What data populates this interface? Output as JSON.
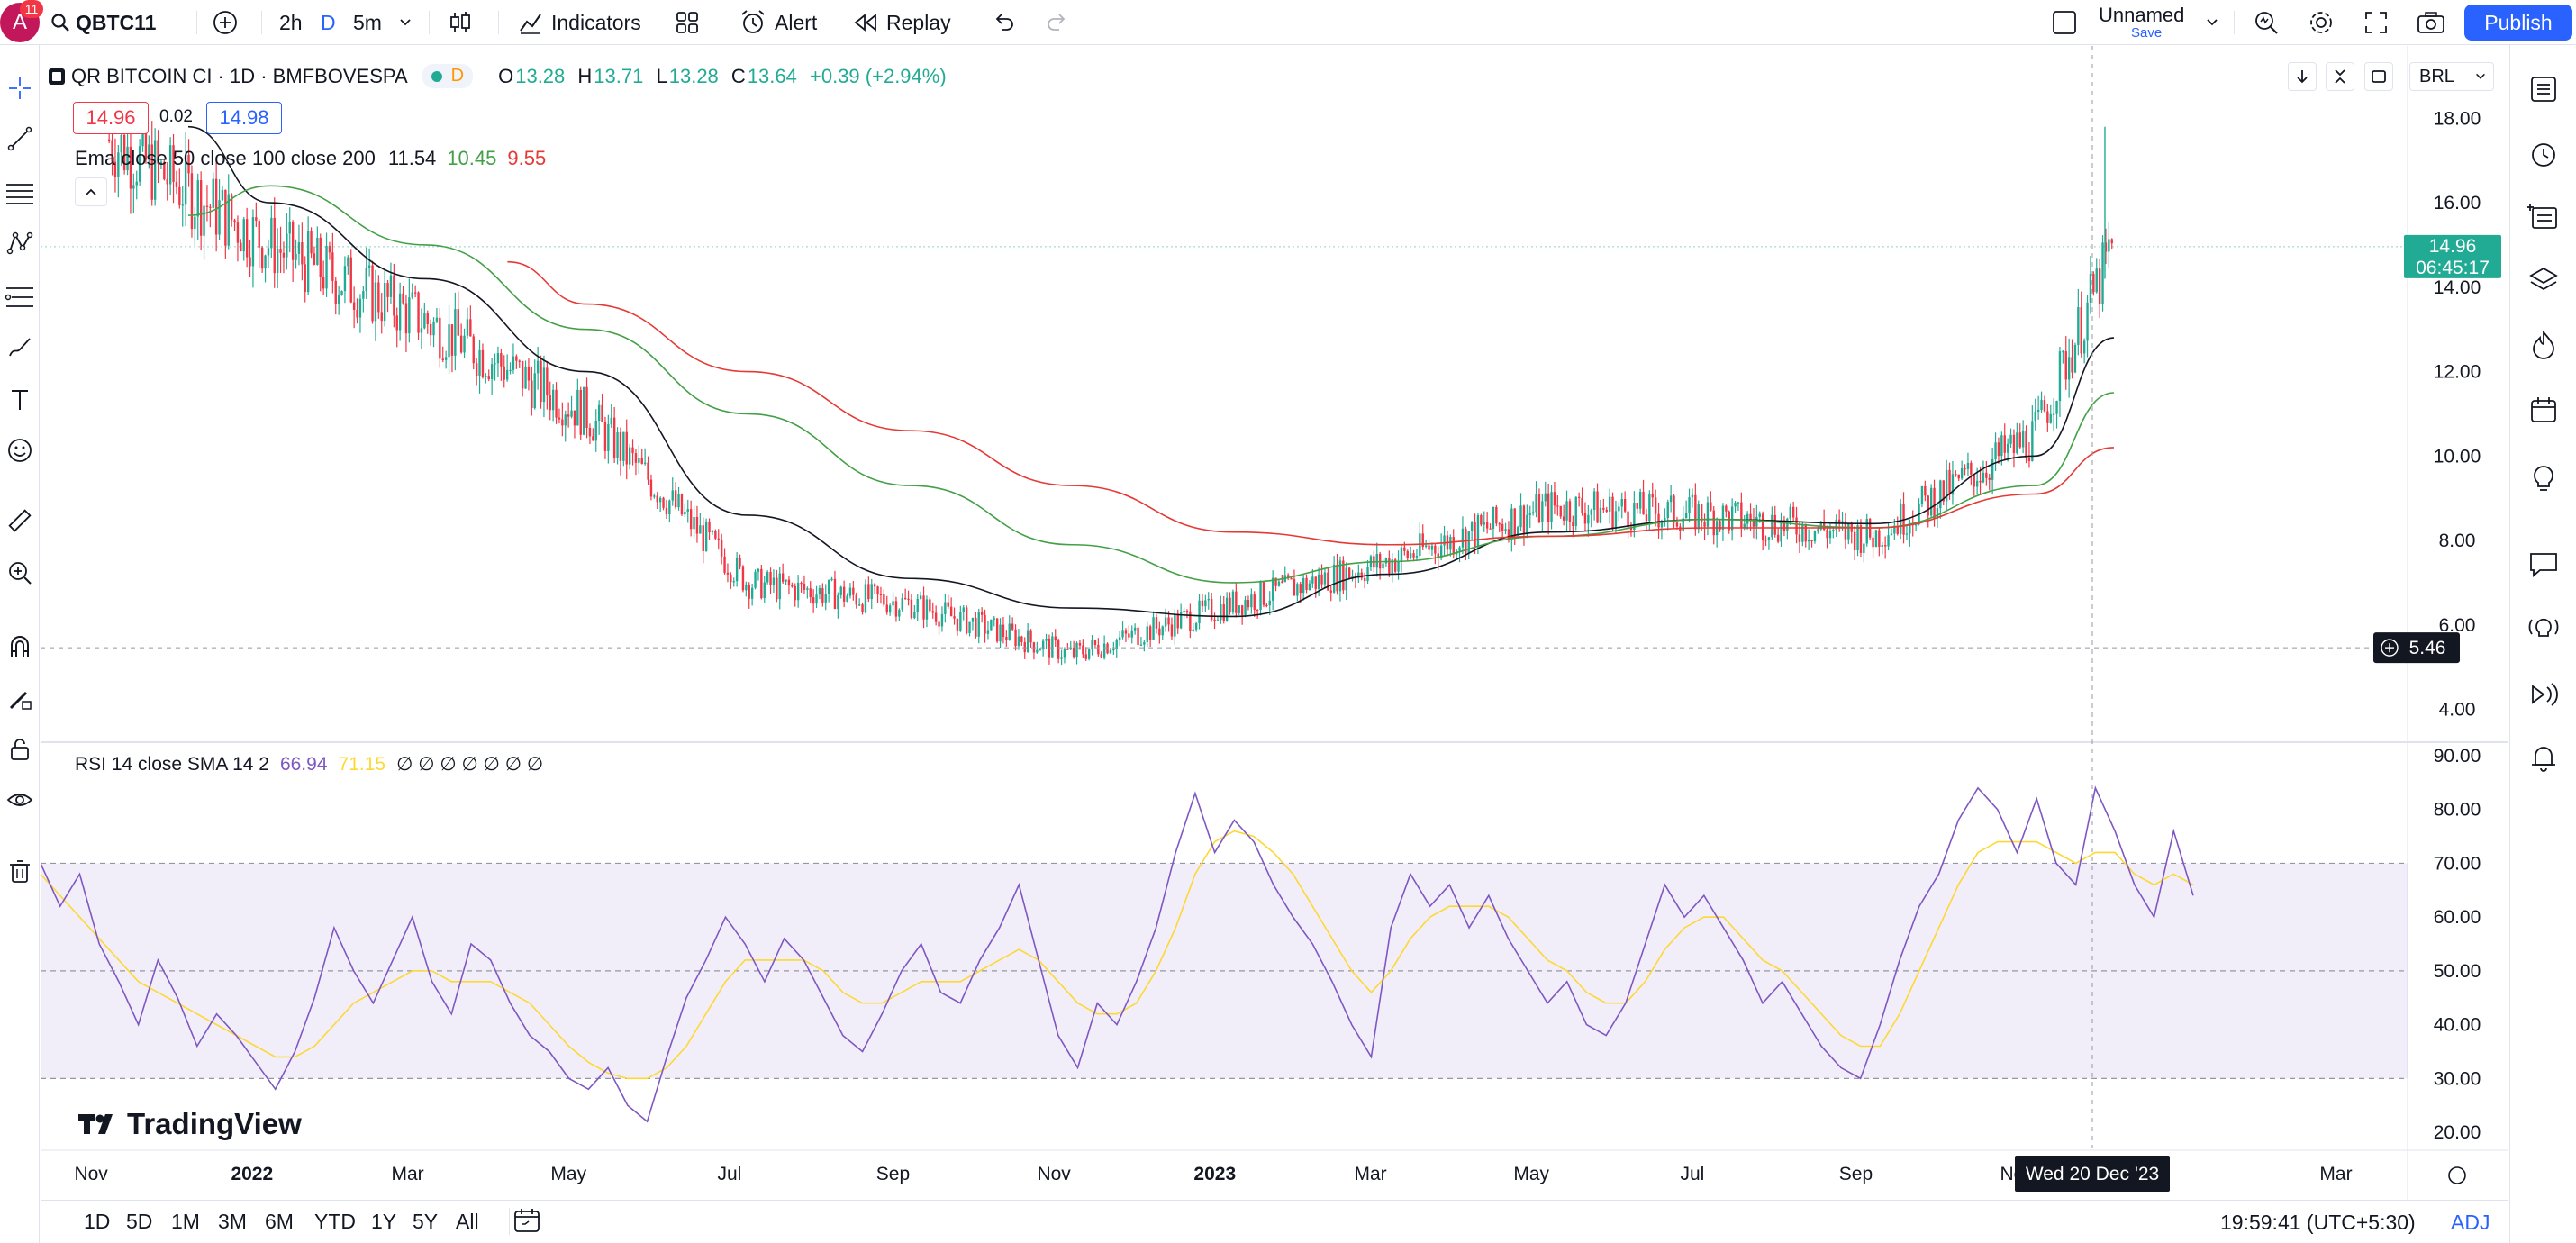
{
  "header": {
    "avatar_letter": "A",
    "notifications": "11",
    "symbol": "QBTC11",
    "intervals": [
      "2h",
      "D",
      "5m"
    ],
    "indicators_label": "Indicators",
    "alert_label": "Alert",
    "replay_label": "Replay",
    "layout_name": "Unnamed",
    "save_label": "Save",
    "publish_label": "Publish"
  },
  "legend": {
    "title": "QR BITCOIN CI · 1D · BMFBOVESPA",
    "interval_badge": "D",
    "o_label": "O",
    "o": "13.28",
    "h_label": "H",
    "h": "13.71",
    "l_label": "L",
    "l": "13.28",
    "c_label": "C",
    "c": "13.64",
    "change": "+0.39 (+2.94%)",
    "bid": "14.96",
    "spread": "0.02",
    "ask": "14.98",
    "ema_label": "Ema close 50 close 100 close 200",
    "ema_vals": [
      "11.54",
      "10.45",
      "9.55"
    ],
    "rsi_label": "RSI 14 close SMA 14 2",
    "rsi_vals": [
      "66.94",
      "71.15"
    ],
    "rsi_na": "∅ ∅ ∅ ∅ ∅ ∅ ∅"
  },
  "price_axis": {
    "currency": "BRL",
    "ticks": [
      "18.00",
      "16.00",
      "14.00",
      "12.00",
      "10.00",
      "8.00",
      "6.00",
      "4.00"
    ],
    "last_price": "14.96",
    "countdown": "06:45:17",
    "crosshair_price": "5.46"
  },
  "rsi_axis": {
    "ticks": [
      "90.00",
      "80.00",
      "70.00",
      "60.00",
      "50.00",
      "40.00",
      "30.00",
      "20.00"
    ]
  },
  "time_axis": {
    "labels": [
      "Nov",
      "2022",
      "Mar",
      "May",
      "Jul",
      "Sep",
      "Nov",
      "2023",
      "Mar",
      "May",
      "Jul",
      "Sep",
      "Nov",
      "Mar"
    ],
    "crosshair_date": "Wed 20 Dec '23"
  },
  "branding": {
    "logo_text": "TradingView"
  },
  "bottom": {
    "ranges": [
      "1D",
      "5D",
      "1M",
      "3M",
      "6M",
      "YTD",
      "1Y",
      "5Y",
      "All"
    ],
    "clock": "19:59:41 (UTC+5:30)",
    "adj": "ADJ"
  },
  "colors": {
    "up": "#22ab94",
    "down": "#f23645",
    "ema50": "#131722",
    "ema100": "#43a047",
    "ema200": "#e53935",
    "rsi": "#7e57c2",
    "rsi_sma": "#fdd835",
    "accent": "#2962ff"
  },
  "chart_data": {
    "type": "candlestick",
    "series": [
      {
        "name": "QR BITCOIN CI",
        "x": [
          "2021-11",
          "2022-01",
          "2022-03",
          "2022-05",
          "2022-07",
          "2022-09",
          "2022-11",
          "2023-01",
          "2023-03",
          "2023-05",
          "2023-07",
          "2023-09",
          "2023-11",
          "2023-12"
        ],
        "y": [
          17.5,
          15.0,
          13.2,
          11.0,
          7.0,
          6.5,
          5.3,
          6.5,
          7.5,
          8.8,
          8.6,
          8.1,
          10.5,
          14.96
        ]
      },
      {
        "name": "EMA 50",
        "x": [
          "2021-12",
          "2022-01",
          "2022-03",
          "2022-05",
          "2022-07",
          "2022-09",
          "2022-11",
          "2023-01",
          "2023-03",
          "2023-05",
          "2023-07",
          "2023-09",
          "2023-11",
          "2023-12"
        ],
        "y": [
          17.8,
          16.0,
          14.2,
          12.0,
          8.6,
          7.1,
          6.4,
          6.2,
          7.2,
          8.2,
          8.5,
          8.4,
          10.0,
          12.8
        ]
      },
      {
        "name": "EMA 100",
        "x": [
          "2021-12",
          "2022-01",
          "2022-03",
          "2022-05",
          "2022-07",
          "2022-09",
          "2022-11",
          "2023-01",
          "2023-03",
          "2023-05",
          "2023-07",
          "2023-09",
          "2023-11",
          "2023-12"
        ],
        "y": [
          15.7,
          16.4,
          15.0,
          13.0,
          11.0,
          9.3,
          7.9,
          7.0,
          7.5,
          8.1,
          8.5,
          8.3,
          9.3,
          11.5
        ]
      },
      {
        "name": "EMA 200",
        "x": [
          "2022-04",
          "2022-05",
          "2022-07",
          "2022-09",
          "2022-11",
          "2023-01",
          "2023-03",
          "2023-05",
          "2023-07",
          "2023-09",
          "2023-11",
          "2023-12"
        ],
        "y": [
          14.6,
          13.6,
          12.0,
          10.6,
          9.3,
          8.2,
          7.9,
          8.1,
          8.3,
          8.3,
          9.1,
          10.2
        ]
      }
    ],
    "ylim": [
      3.5,
      19.5
    ],
    "rsi": {
      "upper": 70,
      "middle": 50,
      "lower": 30,
      "ylim": [
        17,
        92
      ],
      "values": [
        70,
        62,
        68,
        55,
        48,
        40,
        52,
        45,
        36,
        42,
        38,
        33,
        28,
        35,
        45,
        58,
        50,
        44,
        52,
        60,
        48,
        42,
        55,
        52,
        44,
        38,
        35,
        30,
        28,
        32,
        25,
        22,
        34,
        45,
        52,
        60,
        55,
        48,
        56,
        52,
        45,
        38,
        35,
        42,
        50,
        55,
        46,
        44,
        52,
        58,
        66,
        52,
        38,
        32,
        44,
        40,
        48,
        58,
        72,
        83,
        72,
        78,
        74,
        66,
        60,
        55,
        48,
        40,
        34,
        58,
        68,
        62,
        66,
        58,
        64,
        56,
        50,
        44,
        48,
        40,
        38,
        44,
        55,
        66,
        60,
        64,
        58,
        52,
        44,
        48,
        42,
        36,
        32,
        30,
        40,
        52,
        62,
        68,
        78,
        84,
        80,
        72,
        82,
        70,
        66,
        84,
        76,
        66,
        60,
        76,
        64
      ],
      "sma_values": [
        68,
        64,
        60,
        56,
        52,
        48,
        46,
        44,
        42,
        40,
        38,
        36,
        34,
        34,
        36,
        40,
        44,
        46,
        48,
        50,
        50,
        48,
        48,
        48,
        46,
        44,
        40,
        36,
        33,
        31,
        30,
        30,
        32,
        36,
        42,
        48,
        52,
        52,
        52,
        52,
        50,
        46,
        44,
        44,
        46,
        48,
        48,
        48,
        50,
        52,
        54,
        52,
        48,
        44,
        42,
        42,
        44,
        50,
        58,
        68,
        74,
        76,
        75,
        72,
        68,
        62,
        56,
        50,
        46,
        50,
        56,
        60,
        62,
        62,
        62,
        60,
        56,
        52,
        50,
        46,
        44,
        44,
        48,
        54,
        58,
        60,
        60,
        56,
        52,
        50,
        46,
        42,
        38,
        36,
        36,
        42,
        50,
        58,
        66,
        72,
        74,
        74,
        74,
        72,
        70,
        72,
        72,
        68,
        66,
        68,
        66
      ]
    }
  }
}
